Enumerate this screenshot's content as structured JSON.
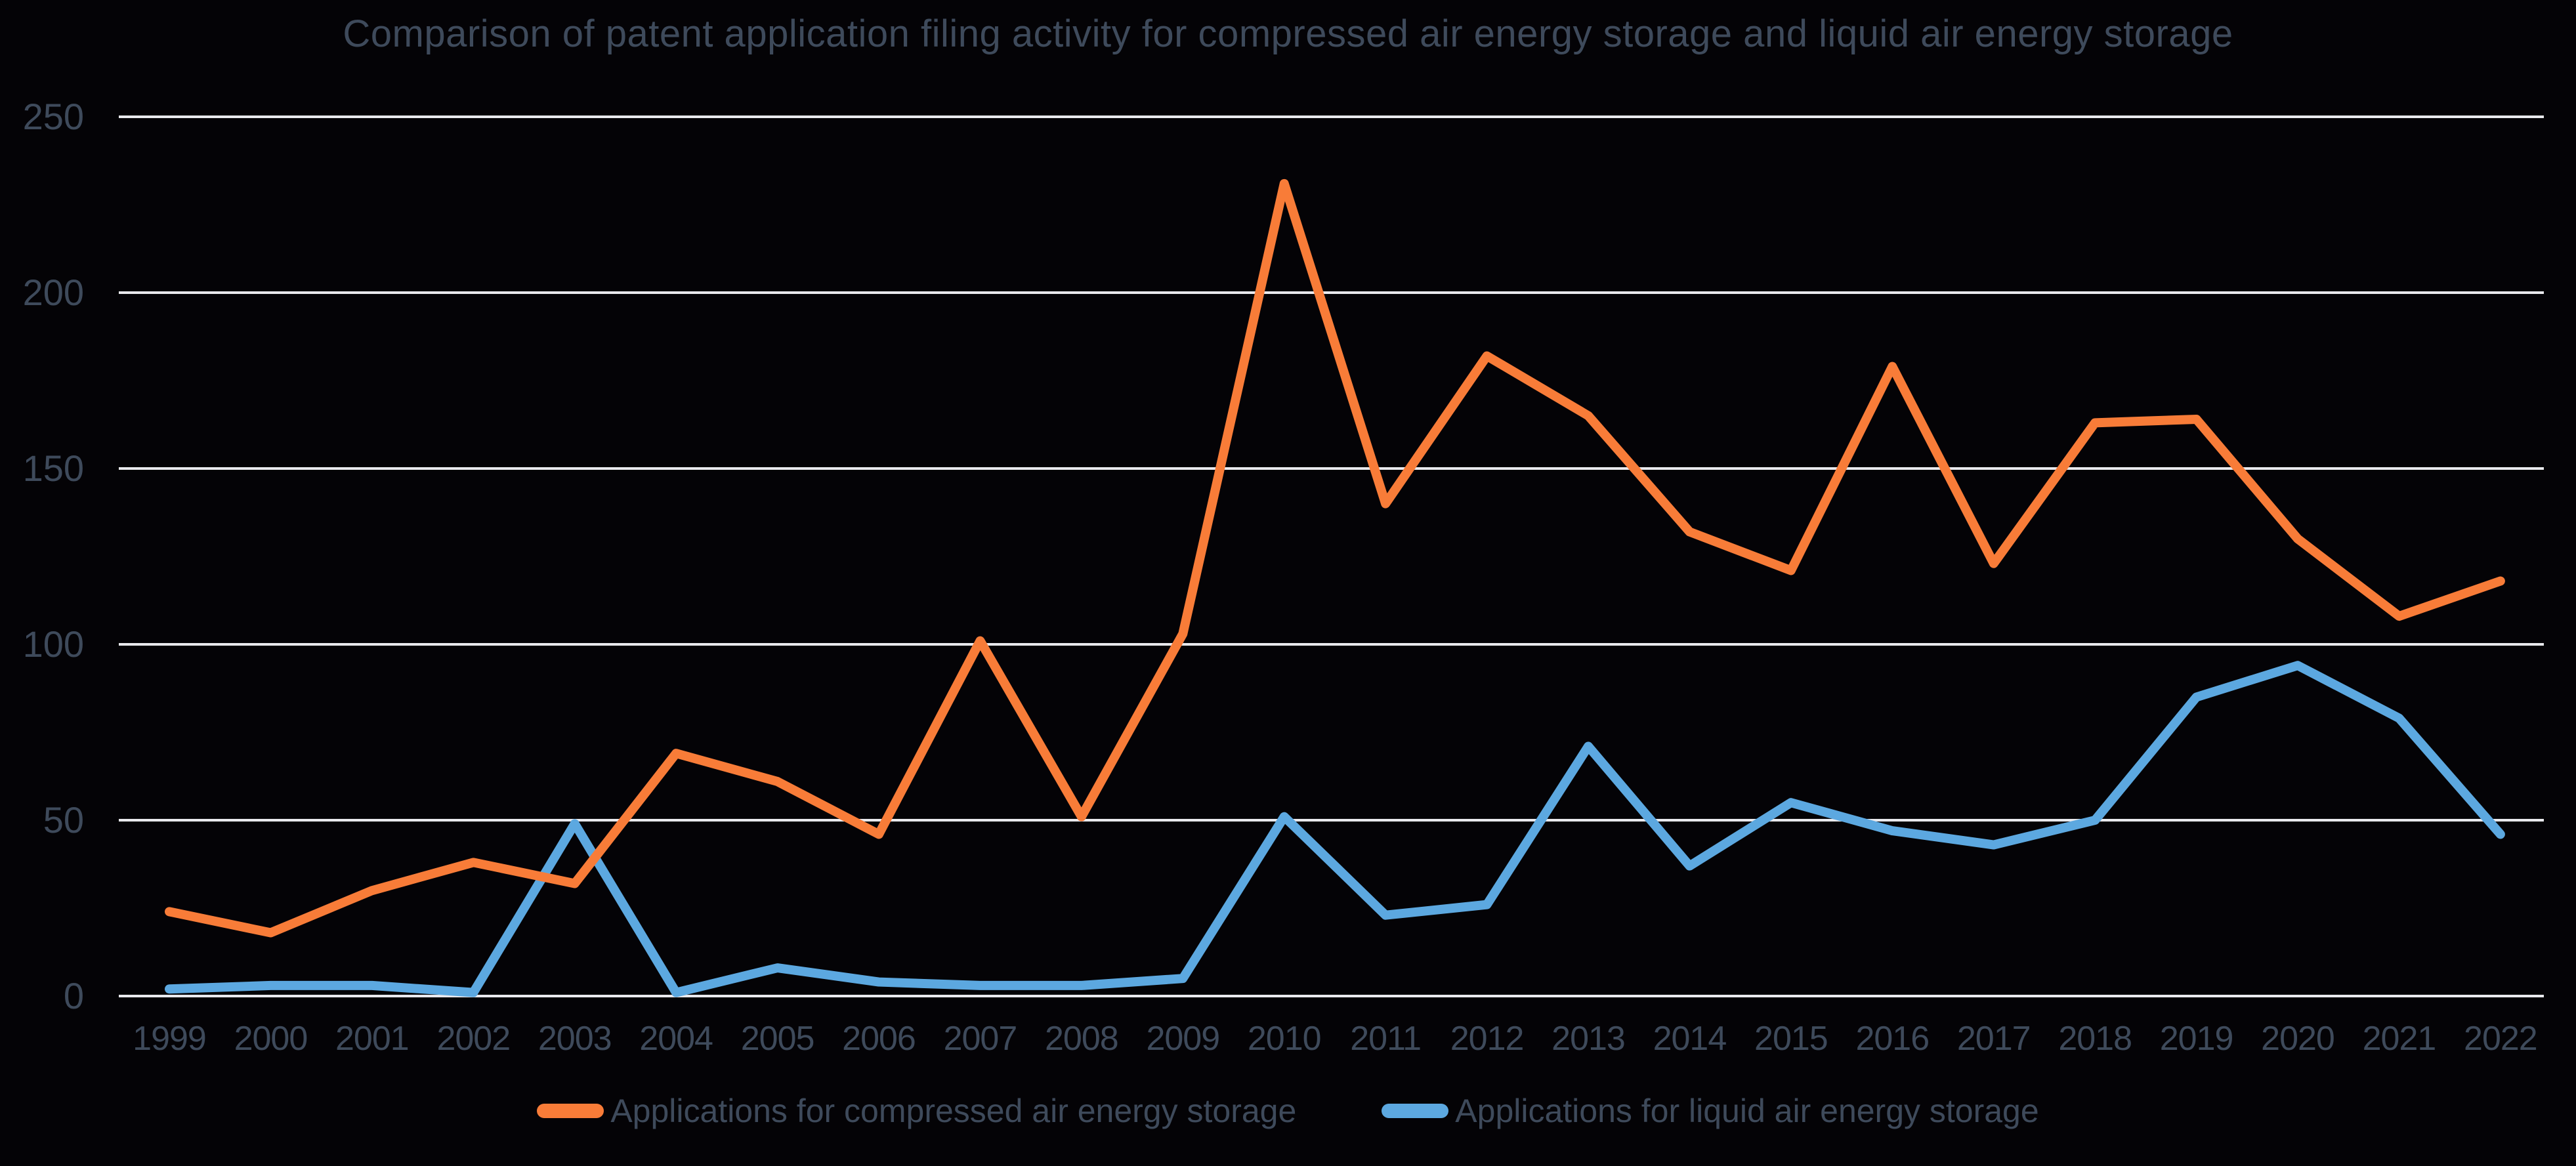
{
  "chart_data": {
    "type": "line",
    "title": "Comparison of patent application filing activity for compressed air energy storage and liquid air energy storage",
    "categories": [
      "1999",
      "2000",
      "2001",
      "2002",
      "2003",
      "2004",
      "2005",
      "2006",
      "2007",
      "2008",
      "2009",
      "2010",
      "2011",
      "2012",
      "2013",
      "2014",
      "2015",
      "2016",
      "2017",
      "2018",
      "2019",
      "2020",
      "2021",
      "2022"
    ],
    "series": [
      {
        "name": "Applications for compressed air energy storage",
        "color": "#F87C38",
        "values": [
          24,
          18,
          30,
          38,
          32,
          69,
          61,
          46,
          101,
          51,
          103,
          231,
          140,
          182,
          165,
          132,
          121,
          179,
          123,
          163,
          164,
          130,
          108,
          118
        ]
      },
      {
        "name": "Applications for liquid air energy storage",
        "color": "#5CA8E0",
        "values": [
          2,
          3,
          3,
          1,
          49,
          1,
          8,
          4,
          3,
          3,
          5,
          51,
          23,
          26,
          71,
          37,
          55,
          47,
          43,
          50,
          85,
          94,
          79,
          46
        ]
      }
    ],
    "xlabel": "",
    "ylabel": "",
    "ylim": [
      0,
      250
    ],
    "yticks": [
      0,
      50,
      100,
      150,
      200,
      250
    ],
    "grid": "horizontal",
    "legend_position": "bottom"
  },
  "colors": {
    "background": "#040306",
    "gridline": "#E9E9ED",
    "tick_label": "#3E4A5B",
    "title": "#3E4A5B",
    "series_compressed": "#F87C38",
    "series_liquid": "#5CA8E0"
  }
}
